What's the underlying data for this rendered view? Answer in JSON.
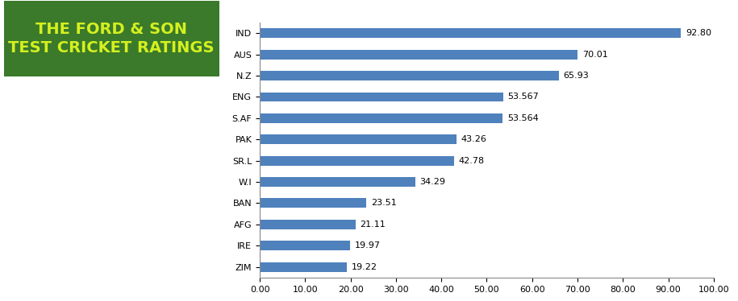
{
  "chart_data": {
    "type": "bar",
    "orientation": "horizontal",
    "title": "THE FORD & SON\nTEST CRICKET RATINGS",
    "categories": [
      "IND",
      "AUS",
      "N.Z",
      "ENG",
      "S.AF",
      "PAK",
      "SR.L",
      "W.I",
      "BAN",
      "AFG",
      "IRE",
      "ZIM"
    ],
    "values": [
      92.8,
      70.01,
      65.93,
      53.567,
      53.564,
      43.26,
      42.78,
      34.29,
      23.51,
      21.11,
      19.97,
      19.22
    ],
    "value_labels": [
      "92.80",
      "70.01",
      "65.93",
      "53.567",
      "53.564",
      "43.26",
      "42.78",
      "34.29",
      "23.51",
      "21.11",
      "19.97",
      "19.22"
    ],
    "color": "#4f81bd",
    "data_labels": true,
    "grid": false,
    "xlim": [
      0,
      100
    ],
    "xticks": [
      {
        "value": 0,
        "label": "0.00"
      },
      {
        "value": 10,
        "label": "10.00"
      },
      {
        "value": 20,
        "label": "20.00"
      },
      {
        "value": 30,
        "label": "30.00"
      },
      {
        "value": 40,
        "label": "40.00"
      },
      {
        "value": 50,
        "label": "50.00"
      },
      {
        "value": 60,
        "label": "60.00"
      },
      {
        "value": 70,
        "label": "70.00"
      },
      {
        "value": 80,
        "label": "80.00"
      },
      {
        "value": 90,
        "label": "90.00"
      },
      {
        "value": 100,
        "label": "100.00"
      }
    ]
  }
}
